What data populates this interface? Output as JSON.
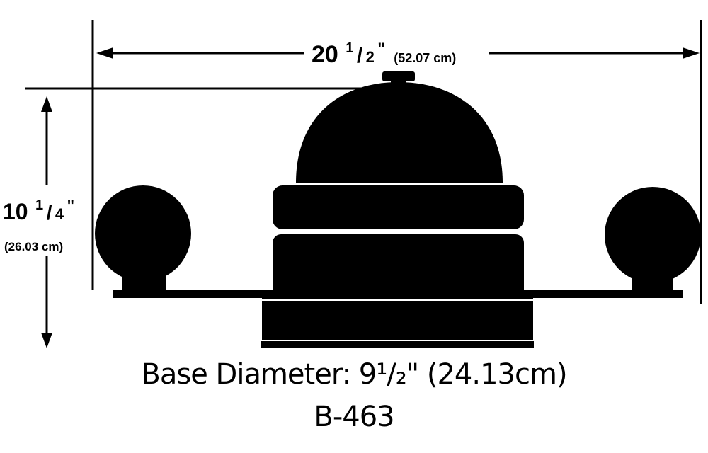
{
  "dimensions": {
    "width_main": "20",
    "width_frac_num": "1",
    "width_frac_den": "2",
    "width_inch_mark": "\"",
    "width_metric": "(52.07 cm)",
    "height_main": "10",
    "height_frac_num": "1",
    "height_frac_den": "4",
    "height_inch_mark": "\"",
    "height_metric": "(26.03 cm)"
  },
  "captions": {
    "base": "Base Diameter: 9¹/₂\" (24.13cm)",
    "model": "B-463"
  },
  "colors": {
    "ink": "#000000",
    "background": "#ffffff"
  }
}
